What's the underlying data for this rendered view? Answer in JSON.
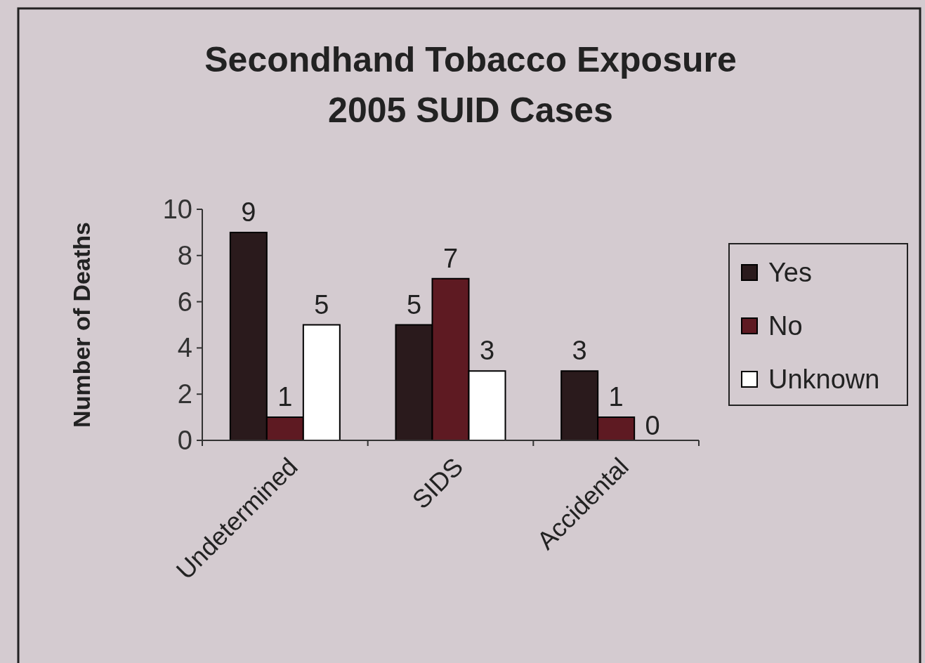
{
  "chart_data": {
    "type": "bar",
    "title": "Secondhand Tobacco Exposure\n2005 SUID Cases",
    "ylabel": "Number of Deaths",
    "categories": [
      "Undetermined",
      "SIDS",
      "Accidental"
    ],
    "series": [
      {
        "name": "Yes",
        "color": "#2a1a1c",
        "values": [
          9,
          5,
          3
        ]
      },
      {
        "name": "No",
        "color": "#5e1a22",
        "values": [
          1,
          7,
          1
        ]
      },
      {
        "name": "Unknown",
        "color": "#ffffff",
        "values": [
          5,
          3,
          0
        ]
      }
    ],
    "ylim": [
      0,
      10
    ],
    "yticks": [
      0,
      2,
      4,
      6,
      8,
      10
    ],
    "data_labels": true,
    "legend": "right",
    "grid": false
  }
}
